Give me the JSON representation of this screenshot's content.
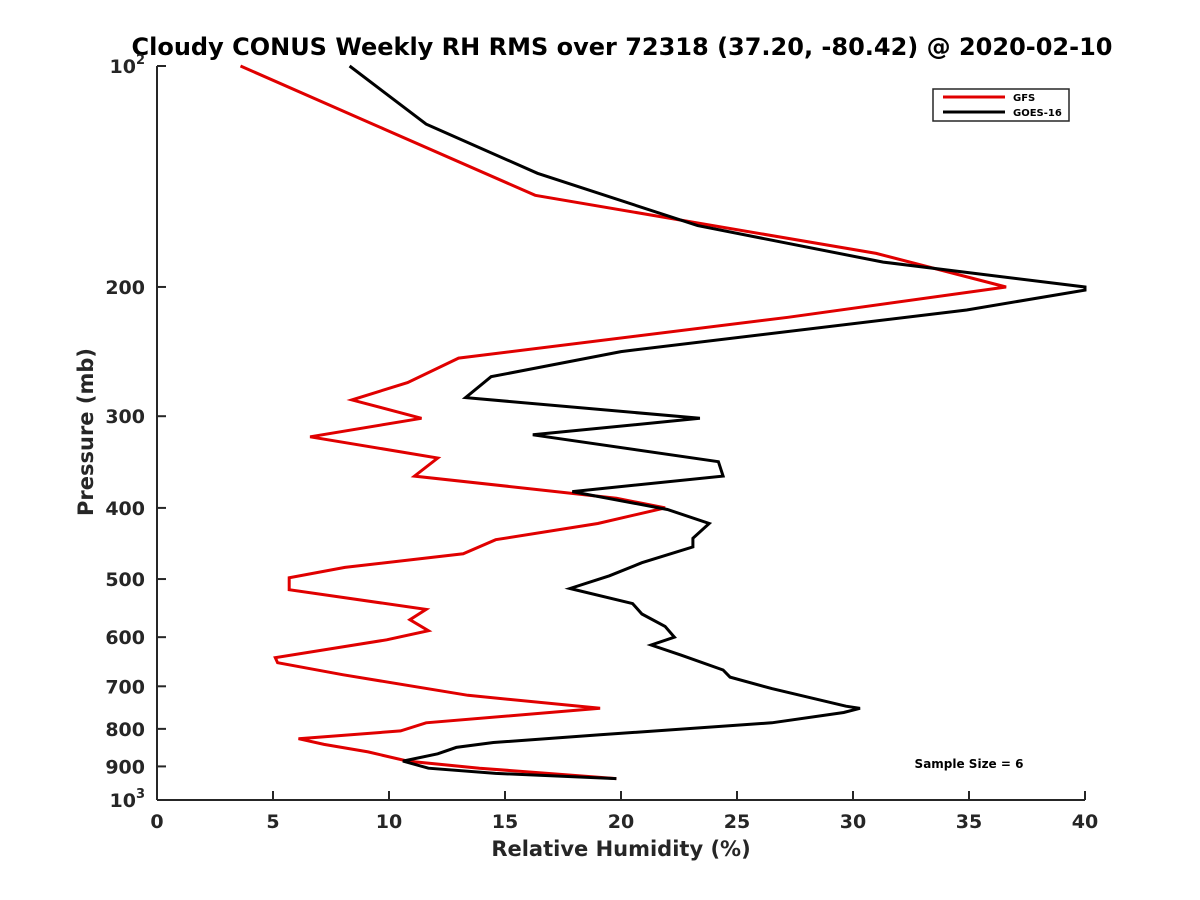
{
  "chart_data": {
    "type": "line",
    "title": "Cloudy CONUS Weekly RH RMS over 72318 (37.20, -80.42) @ 2020-02-10",
    "xlabel": "Relative Humidity (%)",
    "ylabel": "Pressure (mb)",
    "xlim": [
      0,
      40
    ],
    "ylim": [
      100,
      1000
    ],
    "yscale": "log",
    "y_reversed": true,
    "grid": false,
    "legend_position": "top-right",
    "x_ticks": [
      {
        "value": 0,
        "label": "0"
      },
      {
        "value": 5,
        "label": "5"
      },
      {
        "value": 10,
        "label": "10"
      },
      {
        "value": 15,
        "label": "15"
      },
      {
        "value": 20,
        "label": "20"
      },
      {
        "value": 25,
        "label": "25"
      },
      {
        "value": 30,
        "label": "30"
      },
      {
        "value": 35,
        "label": "35"
      },
      {
        "value": 40,
        "label": "40"
      }
    ],
    "y_ticks": [
      {
        "value": 100,
        "base": "10",
        "exp": "2"
      },
      {
        "value": 200,
        "label": "200"
      },
      {
        "value": 300,
        "label": "300"
      },
      {
        "value": 400,
        "label": "400"
      },
      {
        "value": 500,
        "label": "500"
      },
      {
        "value": 600,
        "label": "600"
      },
      {
        "value": 700,
        "label": "700"
      },
      {
        "value": 800,
        "label": "800"
      },
      {
        "value": 900,
        "label": "900"
      },
      {
        "value": 1000,
        "base": "10",
        "exp": "3"
      }
    ],
    "series": [
      {
        "name": "GFS",
        "color": "#e00000",
        "points": [
          [
            3.6,
            100
          ],
          [
            9.3,
            120
          ],
          [
            16.3,
            150
          ],
          [
            31.0,
            180
          ],
          [
            36.6,
            200
          ],
          [
            27.2,
            220
          ],
          [
            13.0,
            250
          ],
          [
            10.8,
            270
          ],
          [
            8.4,
            285
          ],
          [
            11.4,
            302
          ],
          [
            6.6,
            320
          ],
          [
            12.1,
            342
          ],
          [
            11.1,
            362
          ],
          [
            19.8,
            388
          ],
          [
            21.9,
            400
          ],
          [
            19.0,
            420
          ],
          [
            14.6,
            442
          ],
          [
            13.2,
            462
          ],
          [
            8.1,
            482
          ],
          [
            5.7,
            498
          ],
          [
            5.7,
            517
          ],
          [
            11.6,
            550
          ],
          [
            10.9,
            568
          ],
          [
            11.7,
            588
          ],
          [
            9.9,
            605
          ],
          [
            5.1,
            640
          ],
          [
            5.2,
            650
          ],
          [
            8.0,
            675
          ],
          [
            13.4,
            720
          ],
          [
            19.1,
            750
          ],
          [
            11.6,
            785
          ],
          [
            10.5,
            805
          ],
          [
            6.1,
            825
          ],
          [
            7.2,
            840
          ],
          [
            9.1,
            860
          ],
          [
            10.8,
            885
          ],
          [
            13.9,
            905
          ],
          [
            19.8,
            935
          ]
        ]
      },
      {
        "name": "GOES-16",
        "color": "#000000",
        "points": [
          [
            8.3,
            100
          ],
          [
            11.6,
            120
          ],
          [
            16.4,
            140
          ],
          [
            23.3,
            165
          ],
          [
            31.3,
            185
          ],
          [
            40.0,
            200
          ],
          [
            40.0,
            202
          ],
          [
            34.9,
            215
          ],
          [
            20.0,
            245
          ],
          [
            14.4,
            265
          ],
          [
            13.3,
            283
          ],
          [
            23.4,
            302
          ],
          [
            16.2,
            318
          ],
          [
            24.2,
            346
          ],
          [
            24.4,
            362
          ],
          [
            17.9,
            380
          ],
          [
            22.0,
            402
          ],
          [
            23.8,
            420
          ],
          [
            23.1,
            440
          ],
          [
            23.1,
            452
          ],
          [
            20.9,
            475
          ],
          [
            19.5,
            495
          ],
          [
            17.8,
            515
          ],
          [
            20.5,
            540
          ],
          [
            20.9,
            558
          ],
          [
            21.9,
            580
          ],
          [
            22.3,
            600
          ],
          [
            21.3,
            615
          ],
          [
            22.6,
            635
          ],
          [
            24.4,
            665
          ],
          [
            24.7,
            680
          ],
          [
            26.5,
            705
          ],
          [
            29.7,
            745
          ],
          [
            30.3,
            750
          ],
          [
            29.6,
            760
          ],
          [
            26.5,
            785
          ],
          [
            19.1,
            815
          ],
          [
            14.5,
            835
          ],
          [
            12.9,
            848
          ],
          [
            12.1,
            865
          ],
          [
            10.6,
            885
          ],
          [
            11.7,
            905
          ],
          [
            14.6,
            920
          ],
          [
            19.8,
            935
          ]
        ]
      }
    ],
    "annotations": [
      {
        "text": "Sample Size = 6",
        "x": 35,
        "y": 905
      }
    ]
  }
}
